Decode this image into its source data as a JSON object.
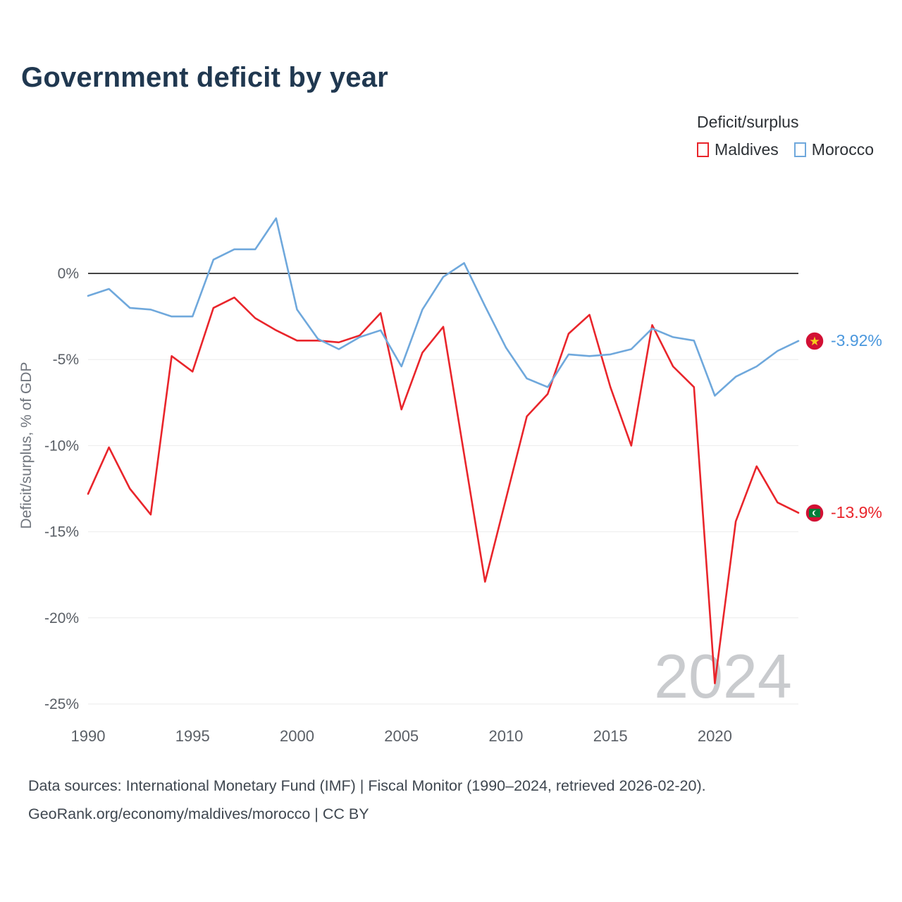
{
  "page": {
    "title": "Government deficit by year",
    "watermark": "2024",
    "footer_line1": "Data sources: International Monetary Fund (IMF) | Fiscal Monitor (1990–2024, retrieved 2026-02-20).",
    "footer_line2": "GeoRank.org/economy/maldives/morocco | CC BY"
  },
  "legend": {
    "title": "Deficit/surplus",
    "items": [
      {
        "label": "Maldives",
        "color": "#e9252b"
      },
      {
        "label": "Morocco",
        "color": "#6fa8dc"
      }
    ]
  },
  "icons": {
    "maldives": "maldives-flag-icon",
    "morocco": "morocco-flag-icon"
  },
  "colors": {
    "maldives_red": "#e9252b",
    "morocco_blue": "#6fa8dc",
    "morocco_label_blue": "#4a97dd",
    "title_navy": "#203850",
    "watermark_gray": "#c9cbce",
    "zero_line": "#454545",
    "gridline": "#ebebeb",
    "axis_text": "#5a5f66"
  },
  "chart_data": {
    "type": "line",
    "title": "Government deficit by year",
    "xlabel": "",
    "ylabel": "Deficit/surplus, % of GDP",
    "ylim": [
      -25.5,
      4.5
    ],
    "x_range": [
      1990,
      2024
    ],
    "grid": "horizontal",
    "legend_position": "top-right",
    "zero_line": true,
    "x": [
      1990,
      1991,
      1992,
      1993,
      1994,
      1995,
      1996,
      1997,
      1998,
      1999,
      2000,
      2001,
      2002,
      2003,
      2004,
      2005,
      2006,
      2007,
      2008,
      2009,
      2010,
      2011,
      2012,
      2013,
      2014,
      2015,
      2016,
      2017,
      2018,
      2019,
      2020,
      2021,
      2022,
      2023,
      2024
    ],
    "y_ticks": [
      {
        "value": 0,
        "label": "0%"
      },
      {
        "value": -5,
        "label": "-5%"
      },
      {
        "value": -10,
        "label": "-10%"
      },
      {
        "value": -15,
        "label": "-15%"
      },
      {
        "value": -20,
        "label": "-20%"
      },
      {
        "value": -25,
        "label": "-25%"
      }
    ],
    "x_ticks": [
      {
        "value": 1990,
        "label": "1990"
      },
      {
        "value": 1995,
        "label": "1995"
      },
      {
        "value": 2000,
        "label": "2000"
      },
      {
        "value": 2005,
        "label": "2005"
      },
      {
        "value": 2010,
        "label": "2010"
      },
      {
        "value": 2015,
        "label": "2015"
      },
      {
        "value": 2020,
        "label": "2020"
      }
    ],
    "series": [
      {
        "name": "Maldives",
        "color": "#e9252b",
        "label_color": "#e9252b",
        "end_label": "-13.9%",
        "values": [
          -12.8,
          -10.1,
          -12.5,
          -14.0,
          -4.8,
          -5.7,
          -2.0,
          -1.4,
          -2.6,
          -3.3,
          -3.9,
          -3.9,
          -4.0,
          -3.6,
          -2.3,
          -7.9,
          -4.6,
          -3.1,
          -10.5,
          -17.9,
          -13.1,
          -8.3,
          -7.0,
          -3.5,
          -2.4,
          -6.6,
          -10.0,
          -3.0,
          -5.4,
          -6.6,
          -23.8,
          -14.4,
          -11.2,
          -13.3,
          -13.9
        ]
      },
      {
        "name": "Morocco",
        "color": "#6fa8dc",
        "label_color": "#4a97dd",
        "end_label": "-3.92%",
        "values": [
          -1.3,
          -0.9,
          -2.0,
          -2.1,
          -2.5,
          -2.5,
          0.8,
          1.4,
          1.4,
          3.2,
          -2.1,
          -3.8,
          -4.4,
          -3.7,
          -3.3,
          -5.4,
          -2.1,
          -0.2,
          0.6,
          -1.9,
          -4.3,
          -6.1,
          -6.6,
          -4.7,
          -4.8,
          -4.7,
          -4.4,
          -3.2,
          -3.7,
          -3.9,
          -7.1,
          -6.0,
          -5.4,
          -4.5,
          -3.92
        ]
      }
    ]
  }
}
